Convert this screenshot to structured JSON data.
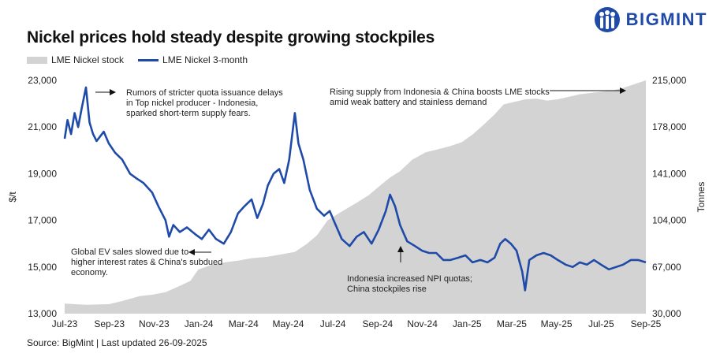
{
  "brand": {
    "name": "BIGMINT",
    "logo_icon": "bigmint-people-icon",
    "color": "#1f4aa8"
  },
  "chart_data": {
    "type": "line",
    "title": "Nickel prices hold steady despite growing stockpiles",
    "ylabel_left": "$/t",
    "ylabel_right": "Tonnes",
    "ylim_left": [
      13000,
      23000
    ],
    "ylim_right": [
      30000,
      215000
    ],
    "yticks_left": [
      "13,000",
      "15,000",
      "17,000",
      "19,000",
      "21,000",
      "23,000"
    ],
    "yticks_right": [
      "30,000",
      "67,000",
      "104,000",
      "141,000",
      "178,000",
      "215,000"
    ],
    "xticks": [
      "Jul-23",
      "Sep-23",
      "Nov-23",
      "Jan-24",
      "Mar-24",
      "May-24",
      "Jul-24",
      "Sep-24",
      "Nov-24",
      "Jan-25",
      "Mar-25",
      "May-25",
      "Jul-25",
      "Sep-25"
    ],
    "x_start": "2023-07-01",
    "x_end": "2025-09-26",
    "legend_position": "top-left",
    "grid": false,
    "series": [
      {
        "name": "LME Nickel stock",
        "kind": "area",
        "axis": "right",
        "color": "#d3d3d3",
        "points": [
          [
            "2023-07-01",
            38000
          ],
          [
            "2023-08-01",
            37000
          ],
          [
            "2023-09-01",
            37500
          ],
          [
            "2023-09-20",
            40000
          ],
          [
            "2023-10-15",
            44000
          ],
          [
            "2023-11-01",
            45000
          ],
          [
            "2023-11-20",
            47000
          ],
          [
            "2023-12-10",
            52000
          ],
          [
            "2023-12-25",
            56000
          ],
          [
            "2024-01-05",
            65000
          ],
          [
            "2024-01-25",
            69000
          ],
          [
            "2024-02-15",
            71000
          ],
          [
            "2024-03-01",
            72000
          ],
          [
            "2024-03-20",
            74000
          ],
          [
            "2024-04-10",
            75000
          ],
          [
            "2024-05-01",
            77000
          ],
          [
            "2024-05-20",
            79000
          ],
          [
            "2024-06-05",
            85000
          ],
          [
            "2024-06-20",
            92000
          ],
          [
            "2024-07-05",
            104000
          ],
          [
            "2024-07-25",
            111000
          ],
          [
            "2024-08-15",
            118000
          ],
          [
            "2024-09-01",
            124000
          ],
          [
            "2024-09-20",
            133000
          ],
          [
            "2024-10-01",
            138000
          ],
          [
            "2024-10-15",
            143000
          ],
          [
            "2024-11-01",
            152000
          ],
          [
            "2024-11-20",
            158000
          ],
          [
            "2024-12-05",
            160000
          ],
          [
            "2024-12-25",
            163000
          ],
          [
            "2025-01-10",
            166000
          ],
          [
            "2025-01-25",
            172000
          ],
          [
            "2025-02-10",
            180000
          ],
          [
            "2025-02-25",
            188000
          ],
          [
            "2025-03-10",
            196000
          ],
          [
            "2025-03-25",
            198000
          ],
          [
            "2025-04-10",
            200000
          ],
          [
            "2025-04-25",
            200500
          ],
          [
            "2025-05-10",
            199000
          ],
          [
            "2025-05-25",
            200000
          ],
          [
            "2025-06-10",
            202000
          ],
          [
            "2025-06-25",
            204000
          ],
          [
            "2025-07-10",
            205000
          ],
          [
            "2025-07-25",
            206000
          ],
          [
            "2025-08-10",
            207000
          ],
          [
            "2025-08-25",
            209000
          ],
          [
            "2025-09-10",
            212000
          ],
          [
            "2025-09-26",
            215000
          ]
        ]
      },
      {
        "name": "LME Nickel 3-month",
        "kind": "line",
        "axis": "left",
        "color": "#1f4aa8",
        "points": [
          [
            "2023-07-01",
            20500
          ],
          [
            "2023-07-05",
            21300
          ],
          [
            "2023-07-10",
            20700
          ],
          [
            "2023-07-15",
            21600
          ],
          [
            "2023-07-20",
            21000
          ],
          [
            "2023-07-25",
            21800
          ],
          [
            "2023-07-31",
            22700
          ],
          [
            "2023-08-05",
            21200
          ],
          [
            "2023-08-10",
            20700
          ],
          [
            "2023-08-15",
            20400
          ],
          [
            "2023-08-25",
            20800
          ],
          [
            "2023-09-01",
            20300
          ],
          [
            "2023-09-10",
            19900
          ],
          [
            "2023-09-20",
            19600
          ],
          [
            "2023-10-01",
            19000
          ],
          [
            "2023-10-10",
            18800
          ],
          [
            "2023-10-20",
            18600
          ],
          [
            "2023-11-01",
            18200
          ],
          [
            "2023-11-10",
            17600
          ],
          [
            "2023-11-20",
            17000
          ],
          [
            "2023-11-25",
            16300
          ],
          [
            "2023-12-01",
            16800
          ],
          [
            "2023-12-10",
            16500
          ],
          [
            "2023-12-20",
            16700
          ],
          [
            "2024-01-01",
            16400
          ],
          [
            "2024-01-10",
            16200
          ],
          [
            "2024-01-20",
            16600
          ],
          [
            "2024-01-30",
            16200
          ],
          [
            "2024-02-10",
            16000
          ],
          [
            "2024-02-20",
            16500
          ],
          [
            "2024-03-01",
            17300
          ],
          [
            "2024-03-10",
            17600
          ],
          [
            "2024-03-20",
            17900
          ],
          [
            "2024-03-28",
            17100
          ],
          [
            "2024-04-05",
            17700
          ],
          [
            "2024-04-12",
            18500
          ],
          [
            "2024-04-20",
            19000
          ],
          [
            "2024-04-28",
            19200
          ],
          [
            "2024-05-05",
            18600
          ],
          [
            "2024-05-12",
            19600
          ],
          [
            "2024-05-20",
            21600
          ],
          [
            "2024-05-25",
            20300
          ],
          [
            "2024-06-01",
            19600
          ],
          [
            "2024-06-10",
            18300
          ],
          [
            "2024-06-20",
            17500
          ],
          [
            "2024-06-30",
            17200
          ],
          [
            "2024-07-08",
            17400
          ],
          [
            "2024-07-15",
            16900
          ],
          [
            "2024-07-25",
            16200
          ],
          [
            "2024-08-05",
            15900
          ],
          [
            "2024-08-15",
            16300
          ],
          [
            "2024-08-25",
            16500
          ],
          [
            "2024-09-05",
            16000
          ],
          [
            "2024-09-15",
            16600
          ],
          [
            "2024-09-25",
            17400
          ],
          [
            "2024-10-01",
            18100
          ],
          [
            "2024-10-08",
            17600
          ],
          [
            "2024-10-15",
            16800
          ],
          [
            "2024-10-25",
            16100
          ],
          [
            "2024-11-05",
            15900
          ],
          [
            "2024-11-15",
            15700
          ],
          [
            "2024-11-25",
            15600
          ],
          [
            "2024-12-05",
            15600
          ],
          [
            "2024-12-15",
            15300
          ],
          [
            "2024-12-25",
            15300
          ],
          [
            "2025-01-05",
            15400
          ],
          [
            "2025-01-15",
            15500
          ],
          [
            "2025-01-25",
            15200
          ],
          [
            "2025-02-05",
            15300
          ],
          [
            "2025-02-15",
            15200
          ],
          [
            "2025-02-25",
            15400
          ],
          [
            "2025-03-05",
            16000
          ],
          [
            "2025-03-12",
            16200
          ],
          [
            "2025-03-20",
            16000
          ],
          [
            "2025-03-28",
            15700
          ],
          [
            "2025-04-05",
            14800
          ],
          [
            "2025-04-09",
            14000
          ],
          [
            "2025-04-15",
            15300
          ],
          [
            "2025-04-25",
            15500
          ],
          [
            "2025-05-05",
            15600
          ],
          [
            "2025-05-15",
            15500
          ],
          [
            "2025-05-25",
            15300
          ],
          [
            "2025-06-05",
            15100
          ],
          [
            "2025-06-15",
            15000
          ],
          [
            "2025-06-25",
            15200
          ],
          [
            "2025-07-05",
            15100
          ],
          [
            "2025-07-15",
            15300
          ],
          [
            "2025-07-25",
            15100
          ],
          [
            "2025-08-05",
            14900
          ],
          [
            "2025-08-15",
            15000
          ],
          [
            "2025-08-25",
            15100
          ],
          [
            "2025-09-05",
            15300
          ],
          [
            "2025-09-15",
            15300
          ],
          [
            "2025-09-26",
            15200
          ]
        ]
      }
    ],
    "annotations": [
      {
        "lines": [
          "Rumors of stricter quota issuance delays",
          "in Top nickel producer - Indonesia,",
          "sparked short-term supply fears."
        ]
      },
      {
        "lines": [
          "Global EV sales slowed due to",
          "higher interest rates & China's subdued",
          "economy."
        ]
      },
      {
        "lines": [
          "Rising supply from Indonesia & China boosts LME stocks",
          "amid weak battery and stainless demand"
        ]
      },
      {
        "lines": [
          "Indonesia increased NPI quotas;",
          "China stockpiles rise"
        ]
      }
    ]
  },
  "source": "Source: BigMint | Last updated 26-09-2025"
}
